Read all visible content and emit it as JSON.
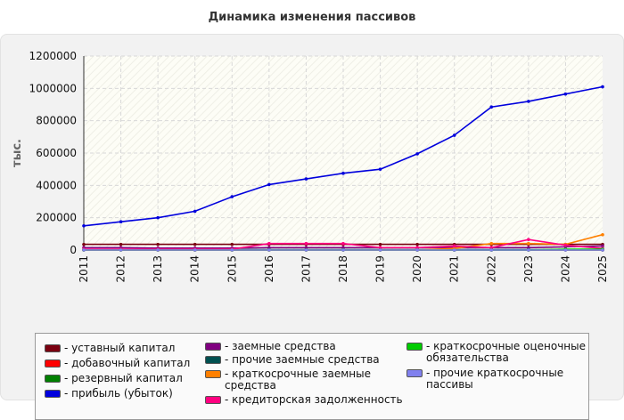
{
  "title": "Динамика изменения пассивов",
  "chart_data": {
    "type": "line",
    "title": "Динамика изменения пассивов",
    "ylabel": "тыс.",
    "xlabel": "",
    "x": [
      "2011",
      "2012",
      "2013",
      "2014",
      "2015",
      "2016",
      "2017",
      "2018",
      "2019",
      "2020",
      "2021",
      "2022",
      "2023",
      "2024",
      "2025"
    ],
    "ylim": [
      0,
      1200000
    ],
    "yticks": [
      "0",
      "200000",
      "400000",
      "600000",
      "800000",
      "1000000",
      "1200000"
    ],
    "grid": true,
    "legend_position": "bottom",
    "series": [
      {
        "name": "уставный капитал",
        "color": "#7a0010",
        "values": [
          35000,
          35000,
          35000,
          35000,
          35000,
          35000,
          35000,
          35000,
          35000,
          35000,
          35000,
          35000,
          35000,
          35000,
          35000
        ]
      },
      {
        "name": "добавочный капитал",
        "color": "#ff0000",
        "values": [
          0,
          0,
          0,
          0,
          0,
          0,
          0,
          0,
          0,
          0,
          0,
          0,
          0,
          0,
          0
        ]
      },
      {
        "name": "резервный капитал",
        "color": "#008000",
        "values": [
          0,
          0,
          0,
          0,
          0,
          0,
          0,
          0,
          0,
          0,
          0,
          0,
          0,
          0,
          0
        ]
      },
      {
        "name": "прибыль (убыток)",
        "color": "#0000dd",
        "values": [
          150000,
          175000,
          200000,
          240000,
          330000,
          405000,
          440000,
          475000,
          500000,
          595000,
          710000,
          885000,
          920000,
          965000,
          1010000
        ]
      },
      {
        "name": "заемные средства",
        "color": "#800080",
        "values": [
          15000,
          15000,
          12000,
          12000,
          12000,
          15000,
          15000,
          15000,
          15000,
          15000,
          15000,
          15000,
          15000,
          20000,
          25000
        ]
      },
      {
        "name": "прочие заемные средства",
        "color": "#005050",
        "values": [
          2000,
          2000,
          2000,
          2000,
          2000,
          2000,
          2000,
          2000,
          2000,
          2000,
          2000,
          2000,
          2000,
          2000,
          2000
        ]
      },
      {
        "name": "краткосрочные заемные\nсредства",
        "color": "#ff8000",
        "values": [
          0,
          0,
          0,
          0,
          0,
          0,
          0,
          0,
          0,
          0,
          10000,
          40000,
          40000,
          35000,
          95000
        ]
      },
      {
        "name": "кредиторская задолженность",
        "color": "#ff0080",
        "values": [
          5000,
          5000,
          5000,
          5000,
          5000,
          40000,
          40000,
          40000,
          15000,
          15000,
          25000,
          15000,
          65000,
          30000,
          10000
        ]
      },
      {
        "name": "краткосрочные оценочные\nобязательства",
        "color": "#00cc00",
        "values": [
          0,
          0,
          0,
          0,
          0,
          0,
          0,
          0,
          0,
          0,
          0,
          0,
          0,
          5000,
          5000
        ]
      },
      {
        "name": "прочие краткосрочные\nпассивы",
        "color": "#8080ee",
        "values": [
          0,
          0,
          0,
          0,
          0,
          0,
          0,
          0,
          0,
          0,
          0,
          0,
          0,
          0,
          0
        ]
      }
    ]
  }
}
